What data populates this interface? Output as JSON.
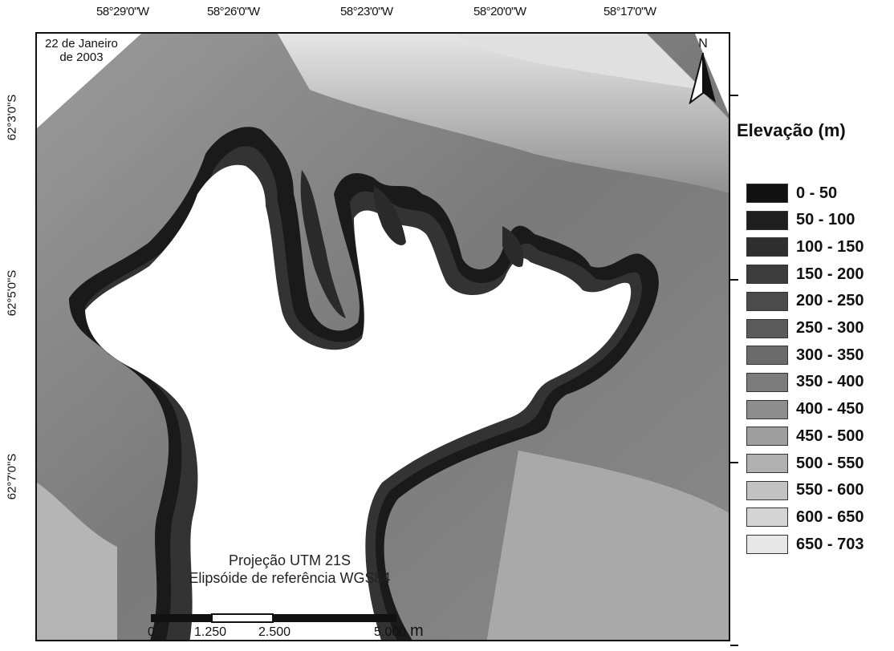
{
  "axes": {
    "longitude_ticks": [
      "58°29'0\"W",
      "58°26'0\"W",
      "58°23'0\"W",
      "58°20'0\"W",
      "58°17'0\"W"
    ],
    "latitude_ticks": [
      "62°3'0\"S",
      "62°5'0\"S",
      "62°7'0\"S"
    ]
  },
  "map": {
    "date_line1": "22 de Janeiro",
    "date_line2": "de 2003",
    "north_label": "N",
    "projection_line1": "Projeção UTM 21S",
    "projection_line2": "Elipsóide de referência WGS84"
  },
  "scale_bar": {
    "labels": [
      "0",
      "1.250",
      "2.500",
      "5.000"
    ],
    "unit": "m"
  },
  "legend": {
    "title": "Elevação (m)",
    "items": [
      {
        "label": "0 - 50",
        "color": "#111111"
      },
      {
        "label": "50 - 100",
        "color": "#1e1e1e"
      },
      {
        "label": "100 - 150",
        "color": "#2e2e2e"
      },
      {
        "label": "150 - 200",
        "color": "#3c3c3c"
      },
      {
        "label": "200 - 250",
        "color": "#4b4b4b"
      },
      {
        "label": "250 - 300",
        "color": "#5b5b5b"
      },
      {
        "label": "300 - 350",
        "color": "#6b6b6b"
      },
      {
        "label": "350 - 400",
        "color": "#7c7c7c"
      },
      {
        "label": "400 - 450",
        "color": "#8d8d8d"
      },
      {
        "label": "450 - 500",
        "color": "#9e9e9e"
      },
      {
        "label": "500 - 550",
        "color": "#b0b0b0"
      },
      {
        "label": "550 - 600",
        "color": "#c2c2c2"
      },
      {
        "label": "600 - 650",
        "color": "#d4d4d4"
      },
      {
        "label": "650 - 703",
        "color": "#e8e8e8"
      }
    ]
  }
}
